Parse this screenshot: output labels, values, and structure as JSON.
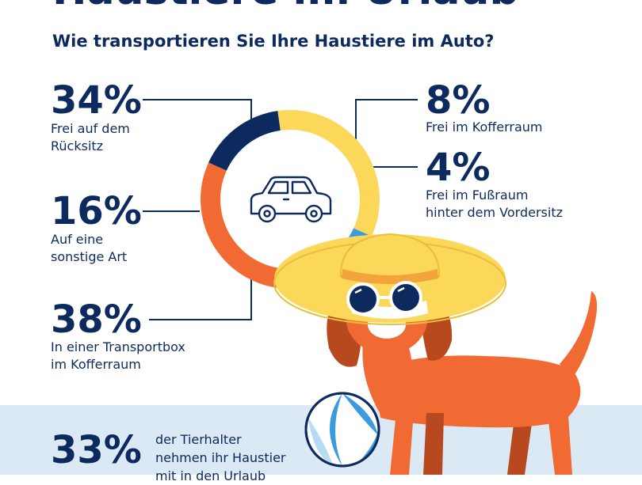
{
  "header": {
    "title": "Haustiere im Urlaub",
    "question": "Wie transportieren Sie Ihre Haustiere im Auto?"
  },
  "colors": {
    "navy": "#0d2a5e",
    "yellow": "#fbd85a",
    "blue": "#3a9be0",
    "light_blue": "#b5dcf2",
    "orange": "#f26a33",
    "band": "#dbe9f5"
  },
  "chart_data": {
    "type": "pie",
    "question": "Wie transportieren Sie Ihre Haustiere im Auto?",
    "donut": true,
    "center_icon": "car-icon",
    "slices": [
      {
        "label": "Frei auf dem Rücksitz",
        "value": 34,
        "pct": "34%",
        "color": "#fbd85a"
      },
      {
        "label": "Frei im Kofferraum",
        "value": 8,
        "pct": "8%",
        "color": "#3a9be0"
      },
      {
        "label": "Frei im Fußraum hinter dem Vordersitz",
        "value": 4,
        "pct": "4%",
        "color": "#b5dcf2"
      },
      {
        "label": "In einer Transportbox im Kofferraum",
        "value": 38,
        "pct": "38%",
        "color": "#f26a33"
      },
      {
        "label": "Auf eine sonstige Art",
        "value": 16,
        "pct": "16%",
        "color": "#0d2a5e"
      }
    ]
  },
  "labels": {
    "rueck": {
      "pct": "34%",
      "line1": "Frei auf dem",
      "line2": "Rücksitz"
    },
    "koffer": {
      "pct": "8%",
      "line1": "Frei im Kofferraum"
    },
    "fuss": {
      "pct": "4%",
      "line1": "Frei im Fußraum",
      "line2": "hinter dem Vordersitz"
    },
    "sonst": {
      "pct": "16%",
      "line1": "Auf eine",
      "line2": "sonstige Art"
    },
    "box": {
      "pct": "38%",
      "line1": "In einer Transportbox",
      "line2": "im Kofferraum"
    }
  },
  "bottom": {
    "pct": "33%",
    "line1": "der Tierhalter",
    "line2": "nehmen ihr Haustier",
    "line3": "mit in den Urlaub"
  }
}
